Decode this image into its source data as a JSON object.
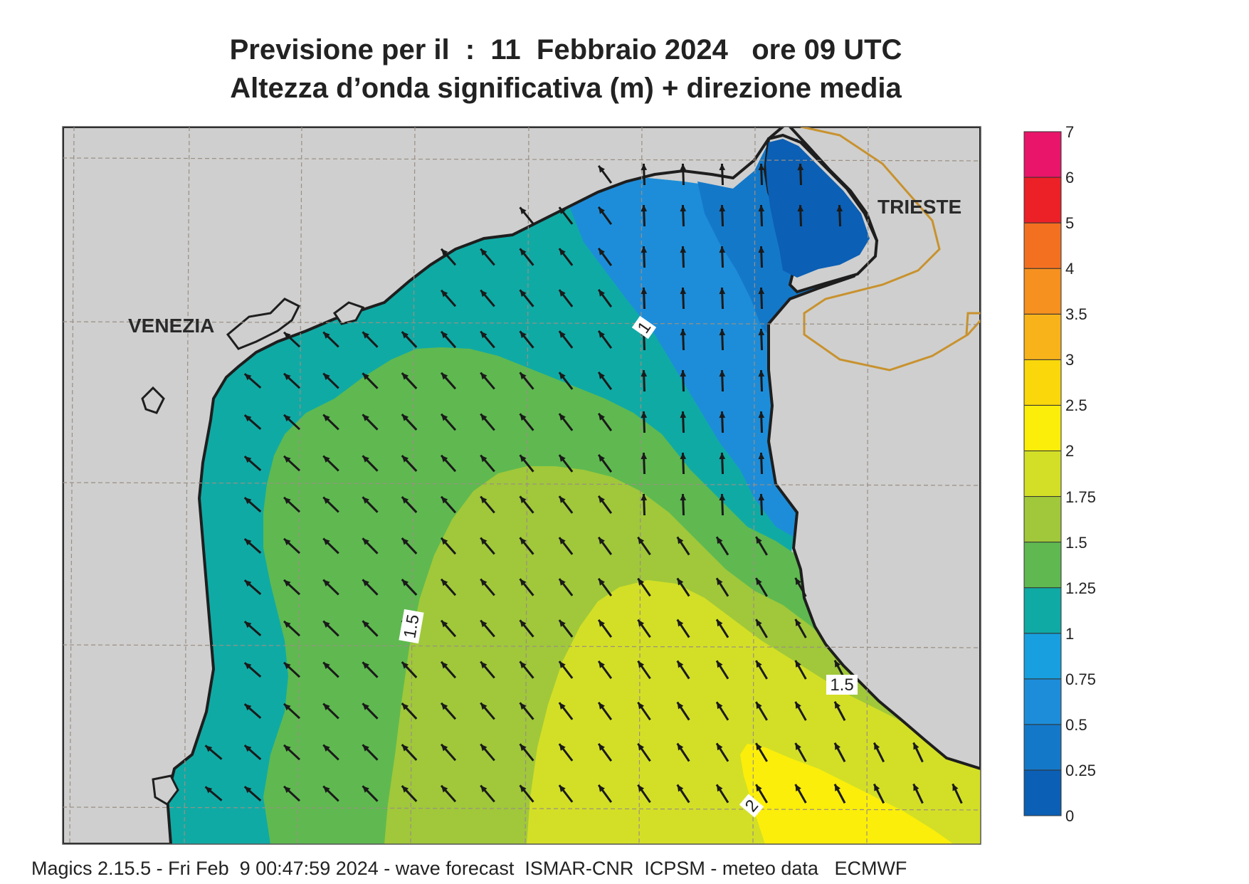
{
  "title_line1": "Previsione per il  :  11  Febbraio 2024   ore 09 UTC",
  "title_line2": "Altezza d’onda significativa (m) + direzione media",
  "footer": "Magics 2.15.5 - Fri Feb  9 00:47:59 2024 - wave forecast  ISMAR-CNR  ICPSM - meteo data   ECMWF",
  "places": {
    "venezia": "VENEZIA",
    "trieste": "TRIESTE"
  },
  "contour_labels": [
    "1",
    "1.5",
    "1.5",
    "2"
  ],
  "legend": {
    "levels": [
      "0",
      "0.25",
      "0.5",
      "0.75",
      "1",
      "1.25",
      "1.5",
      "1.75",
      "2",
      "2.5",
      "3",
      "3.5",
      "4",
      "5",
      "6",
      "7"
    ],
    "colors": [
      "#0b5fb4",
      "#1478c9",
      "#1d8dd9",
      "#189fdf",
      "#10aaa5",
      "#5fb950",
      "#a0c83a",
      "#d3df26",
      "#fbee0a",
      "#f9d70b",
      "#f8b31a",
      "#f6901e",
      "#f37021",
      "#ec2027",
      "#e8156a"
    ]
  },
  "colors": {
    "land": "#cfcfcf",
    "grid": "#9a8f83",
    "coast": "#1e1e1e",
    "border": "#c8922e",
    "arrow": "#1a1a1a"
  },
  "wave_direction": "NNW"
}
